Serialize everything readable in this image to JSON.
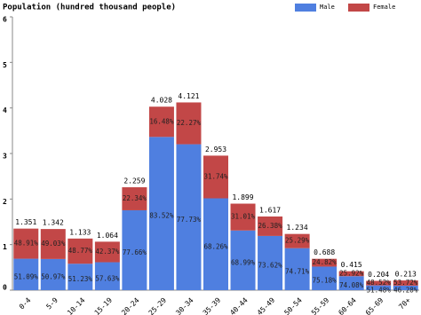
{
  "chart_data": {
    "type": "stacked-bar",
    "title": "Population (hundred thousand people)",
    "categories": [
      "0-4",
      "5-9",
      "10-14",
      "15-19",
      "20-24",
      "25-29",
      "30-34",
      "35-39",
      "40-44",
      "45-49",
      "50-54",
      "55-59",
      "60-64",
      "65-69",
      "70+"
    ],
    "totals": [
      1.351,
      1.342,
      1.133,
      1.064,
      2.259,
      4.028,
      4.121,
      2.953,
      1.899,
      1.617,
      1.234,
      0.688,
      0.415,
      0.204,
      0.213
    ],
    "series": [
      {
        "name": "Male",
        "color": "#4f7fe0",
        "values": [
          0.69,
          0.684,
          0.58,
          0.613,
          1.754,
          3.364,
          3.203,
          2.016,
          1.31,
          1.19,
          0.922,
          0.517,
          0.307,
          0.105,
          0.099
        ],
        "share_labels": [
          "51.09%",
          "50.97%",
          "51.23%",
          "57.63%",
          "77.66%",
          "83.52%",
          "77.73%",
          "68.26%",
          "68.99%",
          "73.62%",
          "74.71%",
          "75.18%",
          "74.08%",
          "51.48%",
          "46.28%"
        ]
      },
      {
        "name": "Female",
        "color": "#c24747",
        "values": [
          0.661,
          0.658,
          0.553,
          0.451,
          0.505,
          0.664,
          0.918,
          0.937,
          0.589,
          0.427,
          0.312,
          0.171,
          0.108,
          0.099,
          0.114
        ],
        "share_labels": [
          "48.91%",
          "49.03%",
          "48.77%",
          "42.37%",
          "22.34%",
          "16.48%",
          "22.27%",
          "31.74%",
          "31.01%",
          "26.38%",
          "25.29%",
          "24.82%",
          "25.92%",
          "48.52%",
          "53.72%"
        ]
      }
    ],
    "ylim": [
      0,
      6
    ],
    "yticks": [
      0,
      1,
      2,
      3,
      4,
      5,
      6
    ]
  }
}
